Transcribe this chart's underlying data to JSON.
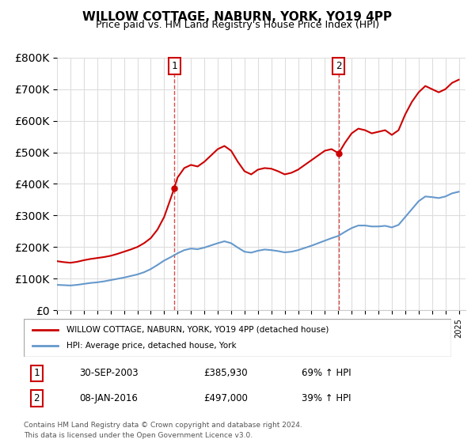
{
  "title": "WILLOW COTTAGE, NABURN, YORK, YO19 4PP",
  "subtitle": "Price paid vs. HM Land Registry's House Price Index (HPI)",
  "legend_line1": "WILLOW COTTAGE, NABURN, YORK, YO19 4PP (detached house)",
  "legend_line2": "HPI: Average price, detached house, York",
  "footnote1": "Contains HM Land Registry data © Crown copyright and database right 2024.",
  "footnote2": "This data is licensed under the Open Government Licence v3.0.",
  "sale1_label": "1",
  "sale1_date": "30-SEP-2003",
  "sale1_price": "£385,930",
  "sale1_hpi": "69% ↑ HPI",
  "sale2_label": "2",
  "sale2_date": "08-JAN-2016",
  "sale2_price": "£497,000",
  "sale2_hpi": "39% ↑ HPI",
  "sale1_year": 2003.75,
  "sale1_value": 385930,
  "sale2_year": 2016.03,
  "sale2_value": 497000,
  "ylim": [
    0,
    800000
  ],
  "xlim_start": 1995,
  "xlim_end": 2025.5,
  "red_color": "#cc0000",
  "blue_color": "#6699cc",
  "dashed_red": "#dd4444",
  "bg_color": "#ffffff",
  "grid_color": "#dddddd",
  "hpi_red_data": {
    "years": [
      1995.0,
      1995.5,
      1996.0,
      1996.5,
      1997.0,
      1997.5,
      1998.0,
      1998.5,
      1999.0,
      1999.5,
      2000.0,
      2000.5,
      2001.0,
      2001.5,
      2002.0,
      2002.5,
      2003.0,
      2003.5,
      2003.75,
      2004.0,
      2004.5,
      2005.0,
      2005.5,
      2006.0,
      2006.5,
      2007.0,
      2007.5,
      2008.0,
      2008.5,
      2009.0,
      2009.5,
      2010.0,
      2010.5,
      2011.0,
      2011.5,
      2012.0,
      2012.5,
      2013.0,
      2013.5,
      2014.0,
      2014.5,
      2015.0,
      2015.5,
      2016.03,
      2016.5,
      2017.0,
      2017.5,
      2018.0,
      2018.5,
      2019.0,
      2019.5,
      2020.0,
      2020.5,
      2021.0,
      2021.5,
      2022.0,
      2022.5,
      2023.0,
      2023.5,
      2024.0,
      2024.5,
      2025.0
    ],
    "values": [
      155000,
      152000,
      150000,
      153000,
      158000,
      162000,
      165000,
      168000,
      172000,
      178000,
      185000,
      192000,
      200000,
      212000,
      228000,
      255000,
      295000,
      355000,
      385930,
      420000,
      450000,
      460000,
      455000,
      470000,
      490000,
      510000,
      520000,
      505000,
      470000,
      440000,
      430000,
      445000,
      450000,
      448000,
      440000,
      430000,
      435000,
      445000,
      460000,
      475000,
      490000,
      505000,
      510000,
      497000,
      530000,
      560000,
      575000,
      570000,
      560000,
      565000,
      570000,
      555000,
      570000,
      620000,
      660000,
      690000,
      710000,
      700000,
      690000,
      700000,
      720000,
      730000
    ]
  },
  "hpi_blue_data": {
    "years": [
      1995.0,
      1995.5,
      1996.0,
      1996.5,
      1997.0,
      1997.5,
      1998.0,
      1998.5,
      1999.0,
      1999.5,
      2000.0,
      2000.5,
      2001.0,
      2001.5,
      2002.0,
      2002.5,
      2003.0,
      2003.5,
      2004.0,
      2004.5,
      2005.0,
      2005.5,
      2006.0,
      2006.5,
      2007.0,
      2007.5,
      2008.0,
      2008.5,
      2009.0,
      2009.5,
      2010.0,
      2010.5,
      2011.0,
      2011.5,
      2012.0,
      2012.5,
      2013.0,
      2013.5,
      2014.0,
      2014.5,
      2015.0,
      2015.5,
      2016.0,
      2016.5,
      2017.0,
      2017.5,
      2018.0,
      2018.5,
      2019.0,
      2019.5,
      2020.0,
      2020.5,
      2021.0,
      2021.5,
      2022.0,
      2022.5,
      2023.0,
      2023.5,
      2024.0,
      2024.5,
      2025.0
    ],
    "values": [
      80000,
      79000,
      78000,
      80000,
      83000,
      86000,
      88000,
      91000,
      95000,
      99000,
      103000,
      108000,
      113000,
      120000,
      130000,
      143000,
      157000,
      168000,
      180000,
      190000,
      195000,
      193000,
      198000,
      205000,
      212000,
      218000,
      212000,
      198000,
      185000,
      182000,
      188000,
      192000,
      190000,
      187000,
      183000,
      185000,
      190000,
      197000,
      204000,
      212000,
      220000,
      228000,
      235000,
      248000,
      260000,
      268000,
      268000,
      265000,
      265000,
      267000,
      262000,
      270000,
      295000,
      320000,
      345000,
      360000,
      358000,
      355000,
      360000,
      370000,
      375000
    ]
  }
}
